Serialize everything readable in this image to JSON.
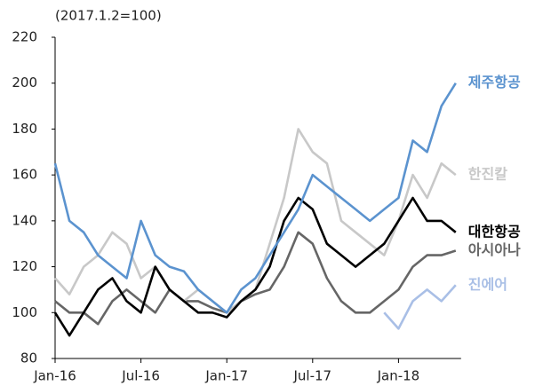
{
  "chart_data": {
    "type": "line",
    "subtitle": "(2017.1.2=100)",
    "categories": [
      "Jan-16",
      null,
      null,
      null,
      null,
      null,
      "Jul-16",
      null,
      null,
      null,
      null,
      null,
      "Jan-17",
      null,
      null,
      null,
      null,
      null,
      "Jul-17",
      null,
      null,
      null,
      null,
      null,
      "Jan-18",
      null,
      null,
      null,
      null
    ],
    "series": [
      {
        "name": "진에어",
        "color": "#a9bfe6",
        "values": [
          null,
          null,
          null,
          null,
          null,
          null,
          null,
          null,
          null,
          null,
          null,
          null,
          null,
          null,
          null,
          null,
          null,
          null,
          null,
          null,
          null,
          null,
          null,
          100,
          93,
          105,
          110,
          105,
          112
        ]
      },
      {
        "name": "아시아나",
        "color": "#666666",
        "values": [
          105,
          100,
          100,
          95,
          105,
          110,
          105,
          100,
          110,
          105,
          105,
          102,
          100,
          105,
          108,
          110,
          120,
          135,
          130,
          115,
          105,
          100,
          100,
          105,
          110,
          120,
          125,
          125,
          127
        ]
      },
      {
        "name": "한진칼",
        "color": "#c8c8c8",
        "values": [
          115,
          108,
          120,
          125,
          135,
          130,
          115,
          120,
          110,
          105,
          110,
          105,
          100,
          105,
          110,
          130,
          150,
          180,
          170,
          165,
          140,
          135,
          130,
          125,
          140,
          160,
          150,
          165,
          160
        ]
      },
      {
        "name": "대한항공",
        "color": "#000000",
        "values": [
          100,
          90,
          100,
          110,
          115,
          105,
          100,
          120,
          110,
          105,
          100,
          100,
          98,
          105,
          110,
          120,
          140,
          150,
          145,
          130,
          125,
          120,
          125,
          130,
          140,
          150,
          140,
          140,
          135
        ]
      },
      {
        "name": "제주항공",
        "color": "#5b93cf",
        "values": [
          165,
          140,
          135,
          125,
          120,
          115,
          140,
          125,
          120,
          118,
          110,
          105,
          100,
          110,
          115,
          125,
          135,
          145,
          160,
          155,
          150,
          145,
          140,
          145,
          150,
          175,
          170,
          190,
          200
        ]
      }
    ],
    "ylim": [
      80,
      220
    ],
    "yticks": [
      80,
      100,
      120,
      140,
      160,
      180,
      200,
      220
    ]
  }
}
